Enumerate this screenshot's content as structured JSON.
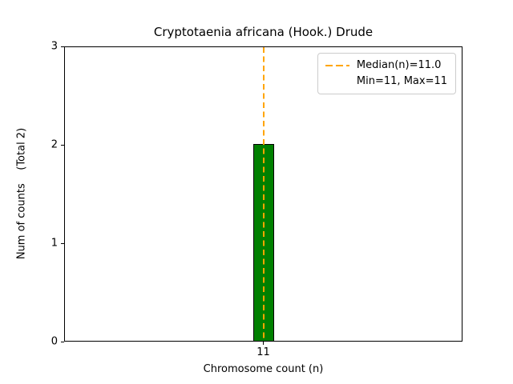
{
  "chart_data": {
    "type": "bar",
    "title": "Cryptotaenia africana (Hook.) Drude",
    "xlabel": "Chromosome count (n)",
    "ylabel": "Num of counts    (Total 2)",
    "categories": [
      "11"
    ],
    "values": [
      2
    ],
    "xticks": [
      "11"
    ],
    "yticks": [
      0,
      1,
      2,
      3
    ],
    "ylim": [
      0,
      3
    ],
    "median": 11.0,
    "min": 11,
    "max": 11,
    "total_counts": 2,
    "bar_color": "#008000",
    "bar_edge_color": "#000000",
    "median_line_color": "#FFA500",
    "legend": {
      "median_label": "Median(n)=11.0",
      "minmax_label": "Min=11, Max=11"
    },
    "legend_position": "upper right",
    "grid": false
  }
}
